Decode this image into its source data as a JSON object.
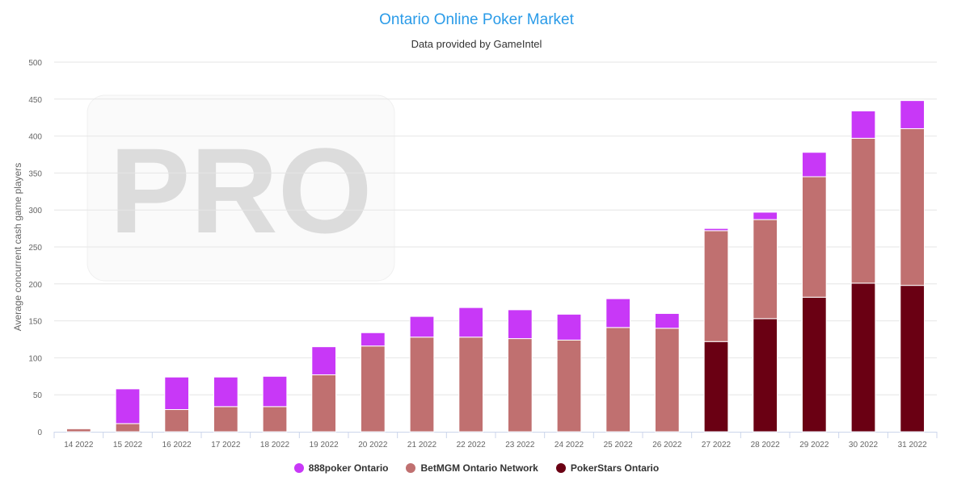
{
  "colors": {
    "title": "#2a9be8",
    "grid": "#e6e6e6",
    "axis": "#ccd6eb",
    "label": "#666666",
    "watermark": "#dcdcdc"
  },
  "watermark": {
    "text": "PRO"
  },
  "chart_data": {
    "type": "bar",
    "stacked": true,
    "title": "Ontario Online Poker Market",
    "subtitle": "Data provided by GameIntel",
    "xlabel": "",
    "ylabel": "Average concurrent cash game players",
    "ylim": [
      0,
      500
    ],
    "yticks": [
      0,
      50,
      100,
      150,
      200,
      250,
      300,
      350,
      400,
      450,
      500
    ],
    "grid": true,
    "legend_position": "bottom-center",
    "categories": [
      "14 2022",
      "15 2022",
      "16 2022",
      "17 2022",
      "18 2022",
      "19 2022",
      "20 2022",
      "21 2022",
      "22 2022",
      "23 2022",
      "24 2022",
      "25 2022",
      "26 2022",
      "27 2022",
      "28 2022",
      "29 2022",
      "30 2022",
      "31 2022"
    ],
    "series": [
      {
        "name": "PokerStars Ontario",
        "color": "#6a0013",
        "values": [
          0,
          0,
          0,
          0,
          0,
          0,
          0,
          0,
          0,
          0,
          0,
          0,
          0,
          122,
          153,
          182,
          201,
          198
        ]
      },
      {
        "name": "BetMGM Ontario Network",
        "color": "#c07070",
        "values": [
          4,
          11,
          30,
          34,
          34,
          77,
          116,
          128,
          128,
          126,
          124,
          141,
          140,
          150,
          134,
          163,
          196,
          212
        ]
      },
      {
        "name": "888poker Ontario",
        "color": "#c838f7",
        "values": [
          0,
          47,
          44,
          40,
          41,
          38,
          18,
          28,
          40,
          39,
          35,
          39,
          20,
          3,
          10,
          33,
          37,
          38
        ]
      }
    ],
    "legend_order": [
      "888poker Ontario",
      "BetMGM Ontario Network",
      "PokerStars Ontario"
    ]
  }
}
